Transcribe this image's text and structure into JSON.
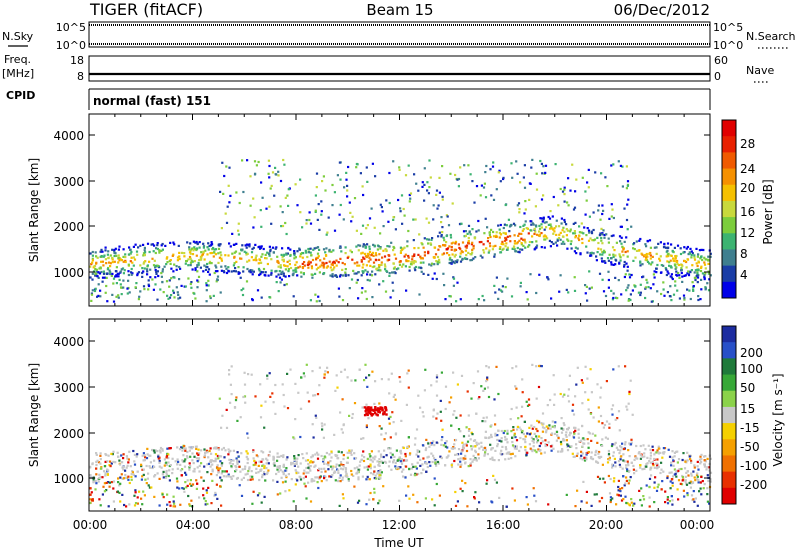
{
  "header": {
    "left": "TIGER (fitACF)",
    "center": "Beam 15",
    "right": "06/Dec/2012"
  },
  "nsky": {
    "label": "N.Sky",
    "ticks_left": [
      "10^5",
      "10^0"
    ],
    "ticks_right": [
      "10^5",
      "10^0"
    ],
    "right_label": "N.Search"
  },
  "freq": {
    "label_top": "Freq.",
    "label_bottom": "[MHz]",
    "ticks_left": [
      "18",
      "8"
    ],
    "ticks_right": [
      "60",
      "0"
    ],
    "right_label": "Nave"
  },
  "cpid": {
    "label": "CPID",
    "value": "normal (fast) 151"
  },
  "power_panel": {
    "ylabel": "Slant Range [km]",
    "yticks": [
      "4000",
      "3000",
      "2000",
      "1000"
    ],
    "colorbar_label": "Power [dB]",
    "colorbar_ticks": [
      "28",
      "24",
      "20",
      "16",
      "12",
      "8",
      "4"
    ],
    "colors": [
      "#0000e8",
      "#1a3da6",
      "#3f7f8f",
      "#3cb371",
      "#7ccd3c",
      "#c8d93c",
      "#f5c000",
      "#f59000",
      "#f05a00",
      "#e82000",
      "#e00000"
    ]
  },
  "velocity_panel": {
    "ylabel": "Slant Range [km]",
    "yticks": [
      "4000",
      "3000",
      "2000",
      "1000"
    ],
    "colorbar_label": "Velocity [m s⁻¹]",
    "colorbar_ticks": [
      "200",
      "100",
      "50",
      "15",
      "-15",
      "-50",
      "-100",
      "-200"
    ],
    "colors": [
      "#1c2ca0",
      "#2850c8",
      "#1f7a3a",
      "#37a837",
      "#8bd24a",
      "#c8c8c8",
      "#f5d000",
      "#f5a000",
      "#f07000",
      "#e83000",
      "#e00000"
    ]
  },
  "xaxis": {
    "label": "Time UT",
    "ticks": [
      "00:00",
      "04:00",
      "08:00",
      "12:00",
      "16:00",
      "20:00",
      "00:00"
    ]
  },
  "chart_data": {
    "type": "heatmap",
    "x_range_hours": [
      0,
      24
    ],
    "y_range_km": [
      180,
      4500
    ],
    "panels": [
      {
        "name": "Power",
        "units": "dB",
        "scale": [
          0,
          30
        ],
        "features": [
          {
            "description": "main scatter band",
            "x": [
              0,
              4,
              8,
              12,
              16,
              18,
              20,
              24
            ],
            "y_km": [
              1150,
              1350,
              1150,
              1300,
              1700,
              1900,
              1500,
              1100
            ],
            "peak_power_db": 28
          },
          {
            "description": "upper scatter",
            "x": [
              5,
              12,
              16,
              20
            ],
            "y_km": [
              2200,
              2300,
              3000,
              2600
            ],
            "peak_power_db": 16
          }
        ]
      },
      {
        "name": "Velocity",
        "units": "m s^-1",
        "scale": [
          -200,
          200
        ],
        "features": [
          {
            "description": "ground scatter (grey)",
            "x": [
              0,
              4,
              8,
              12,
              16,
              20,
              24
            ],
            "y_km": [
              1150,
              1350,
              1150,
              1300,
              1700,
              1500,
              1100
            ],
            "velocity": 0
          },
          {
            "description": "negative velocity patch near 11:00",
            "x": [
              10.5,
              11.5
            ],
            "y_km": [
              2400,
              2500
            ],
            "velocity": -200
          }
        ]
      }
    ]
  }
}
